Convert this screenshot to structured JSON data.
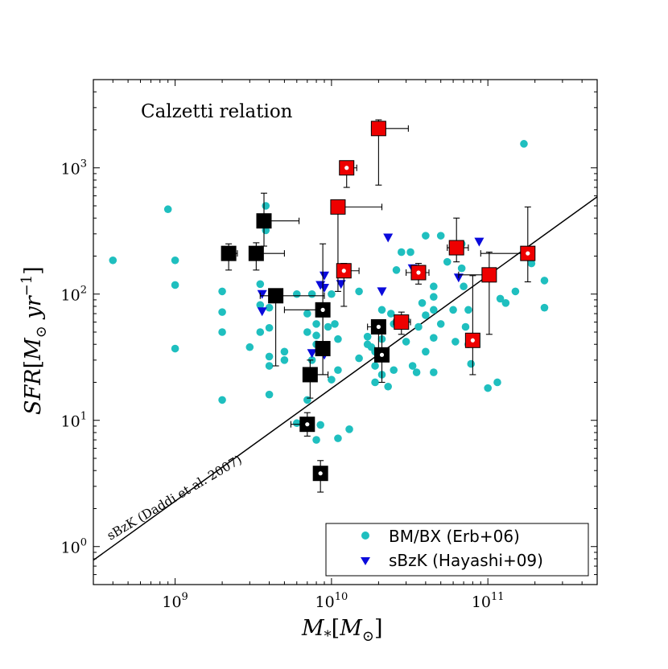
{
  "chart_data": {
    "type": "scatter",
    "title": "",
    "annotation": "Calzetti relation",
    "xlabel": {
      "main": "M",
      "sub": "*",
      "unit_open": "[",
      "unit_main": "M",
      "unit_sub": "⊙",
      "unit_close": "]"
    },
    "ylabel": {
      "main": "SFR",
      "unit_open": "[",
      "unit_main": "M",
      "unit_sub": "⊙",
      "unit_yr": " yr",
      "unit_sup": "−1",
      "unit_close": "]"
    },
    "x_scale": "log",
    "y_scale": "log",
    "xlim": [
      300000000.0,
      500000000000.0
    ],
    "ylim": [
      0.5,
      5000
    ],
    "x_ticks": [
      {
        "v": 1000000000.0,
        "base": "10",
        "exp": "9"
      },
      {
        "v": 10000000000.0,
        "base": "10",
        "exp": "10"
      },
      {
        "v": 100000000000.0,
        "base": "10",
        "exp": "11"
      }
    ],
    "y_ticks": [
      {
        "v": 1,
        "base": "10",
        "exp": "0"
      },
      {
        "v": 10,
        "base": "10",
        "exp": "1"
      },
      {
        "v": 100,
        "base": "10",
        "exp": "2"
      },
      {
        "v": 1000,
        "base": "10",
        "exp": "3"
      }
    ],
    "relation_line": {
      "label": "sBzK (Daddi et al. 2007)",
      "points": [
        [
          300000000.0,
          0.78
        ],
        [
          500000000000.0,
          590
        ]
      ]
    },
    "legend": {
      "placement": "lower-right",
      "entries": [
        {
          "label": "BM/BX (Erb+06)",
          "marker": "circle",
          "color": "#1fbfbf"
        },
        {
          "label": "sBzK (Hayashi+09)",
          "marker": "triangle-down",
          "color": "#0a0adc"
        }
      ]
    },
    "series": [
      {
        "name": "BM/BX (Erb+06)",
        "marker": "circle",
        "color": "#1fbfbf",
        "points": [
          [
            400000000.0,
            185
          ],
          [
            900000000.0,
            470
          ],
          [
            1000000000.0,
            185
          ],
          [
            1000000000.0,
            118
          ],
          [
            1000000000.0,
            37
          ],
          [
            2000000000.0,
            105
          ],
          [
            2000000000.0,
            72
          ],
          [
            2000000000.0,
            50
          ],
          [
            2000000000.0,
            14.5
          ],
          [
            3000000000.0,
            38
          ],
          [
            3500000000.0,
            120
          ],
          [
            3500000000.0,
            82
          ],
          [
            3500000000.0,
            50
          ],
          [
            3800000000.0,
            500
          ],
          [
            3800000000.0,
            320
          ],
          [
            4000000000.0,
            78
          ],
          [
            4000000000.0,
            54
          ],
          [
            4000000000.0,
            32
          ],
          [
            4000000000.0,
            27
          ],
          [
            4000000000.0,
            16
          ],
          [
            5000000000.0,
            35
          ],
          [
            5000000000.0,
            30
          ],
          [
            6000000000.0,
            100
          ],
          [
            6000000000.0,
            9.5
          ],
          [
            7000000000.0,
            70
          ],
          [
            7000000000.0,
            50
          ],
          [
            7000000000.0,
            14.5
          ],
          [
            7500000000.0,
            100
          ],
          [
            7500000000.0,
            30
          ],
          [
            8000000000.0,
            58
          ],
          [
            8000000000.0,
            47
          ],
          [
            8000000000.0,
            40
          ],
          [
            8000000000.0,
            7
          ],
          [
            8500000000.0,
            9.2
          ],
          [
            9000000000.0,
            35
          ],
          [
            9500000000.0,
            55
          ],
          [
            10000000000.0,
            100
          ],
          [
            10000000000.0,
            21
          ],
          [
            10500000000.0,
            58
          ],
          [
            11000000000.0,
            44
          ],
          [
            11000000000.0,
            25
          ],
          [
            11000000000.0,
            7.2
          ],
          [
            13000000000.0,
            8.5
          ],
          [
            15000000000.0,
            105
          ],
          [
            15000000000.0,
            31
          ],
          [
            17000000000.0,
            46
          ],
          [
            17000000000.0,
            40
          ],
          [
            18000000000.0,
            38
          ],
          [
            19000000000.0,
            35
          ],
          [
            19000000000.0,
            27
          ],
          [
            19000000000.0,
            20
          ],
          [
            21000000000.0,
            75
          ],
          [
            21000000000.0,
            44
          ],
          [
            21000000000.0,
            23
          ],
          [
            22000000000.0,
            31
          ],
          [
            23000000000.0,
            18.5
          ],
          [
            24000000000.0,
            70
          ],
          [
            25000000000.0,
            58
          ],
          [
            25000000000.0,
            25
          ],
          [
            26000000000.0,
            155
          ],
          [
            28000000000.0,
            215
          ],
          [
            30000000000.0,
            62
          ],
          [
            30000000000.0,
            42
          ],
          [
            32000000000.0,
            215
          ],
          [
            33000000000.0,
            27
          ],
          [
            35000000000.0,
            24
          ],
          [
            36000000000.0,
            55
          ],
          [
            38000000000.0,
            85
          ],
          [
            40000000000.0,
            290
          ],
          [
            40000000000.0,
            68
          ],
          [
            40000000000.0,
            35
          ],
          [
            45000000000.0,
            115
          ],
          [
            45000000000.0,
            95
          ],
          [
            45000000000.0,
            75
          ],
          [
            45000000000.0,
            45
          ],
          [
            45000000000.0,
            24
          ],
          [
            50000000000.0,
            290
          ],
          [
            50000000000.0,
            58
          ],
          [
            55000000000.0,
            180
          ],
          [
            60000000000.0,
            75
          ],
          [
            62000000000.0,
            42
          ],
          [
            68000000000.0,
            250
          ],
          [
            68000000000.0,
            160
          ],
          [
            70000000000.0,
            115
          ],
          [
            72000000000.0,
            55
          ],
          [
            75000000000.0,
            75
          ],
          [
            75000000000.0,
            40
          ],
          [
            78000000000.0,
            28
          ],
          [
            100000000000.0,
            18
          ],
          [
            115000000000.0,
            20
          ],
          [
            120000000000.0,
            92
          ],
          [
            130000000000.0,
            85
          ],
          [
            150000000000.0,
            105
          ],
          [
            170000000000.0,
            1550
          ],
          [
            190000000000.0,
            175
          ],
          [
            230000000000.0,
            128
          ],
          [
            230000000000.0,
            78
          ]
        ]
      },
      {
        "name": "sBzK (Hayashi+09)",
        "marker": "triangle-down",
        "color": "#0a0adc",
        "points": [
          [
            3600000000.0,
            100
          ],
          [
            3600000000.0,
            73
          ],
          [
            7500000000.0,
            34
          ],
          [
            8500000000.0,
            118
          ],
          [
            9000000000.0,
            140
          ],
          [
            9000000000.0,
            112
          ],
          [
            9000000000.0,
            33
          ],
          [
            11500000000.0,
            120
          ],
          [
            21000000000.0,
            105
          ],
          [
            23000000000.0,
            280
          ],
          [
            33000000000.0,
            160
          ],
          [
            65000000000.0,
            135
          ],
          [
            88000000000.0,
            260
          ]
        ]
      },
      {
        "name": "Black sample",
        "marker": "square",
        "color": "#000000",
        "points": [
          {
            "x": 2200000000.0,
            "y": 210,
            "xl": 2000000000.0,
            "xh": 2500000000.0,
            "yl": 155,
            "yh": 250,
            "open": false
          },
          {
            "x": 3300000000.0,
            "y": 210,
            "xl": 3100000000.0,
            "xh": 5000000000.0,
            "yl": 155,
            "yh": 255,
            "open": false
          },
          {
            "x": 3700000000.0,
            "y": 380,
            "xl": 3400000000.0,
            "xh": 6200000000.0,
            "yl": 240,
            "yh": 630,
            "open": false
          },
          {
            "x": 4400000000.0,
            "y": 97,
            "xl": 3500000000.0,
            "xh": 9000000000.0,
            "yl": 27,
            "yh": 110,
            "open": false
          },
          {
            "x": 8800000000.0,
            "y": 75,
            "xl": 5000000000.0,
            "xh": 9400000000.0,
            "yl": 38,
            "yh": 250,
            "open": true
          },
          {
            "x": 8800000000.0,
            "y": 37,
            "xl": 8500000000.0,
            "xh": 9500000000.0,
            "yl": 23,
            "yh": 70,
            "open": false
          },
          {
            "x": 7300000000.0,
            "y": 23,
            "xl": 6800000000.0,
            "xh": 9500000000.0,
            "yl": 15,
            "yh": 30,
            "open": false
          },
          {
            "x": 7000000000.0,
            "y": 9.3,
            "xl": 5500000000.0,
            "xh": 7600000000.0,
            "yl": 7.5,
            "yh": 11.5,
            "open": true
          },
          {
            "x": 8500000000.0,
            "y": 3.8,
            "xl": 8000000000.0,
            "xh": 9000000000.0,
            "yl": 2.7,
            "yh": 4.8,
            "open": true
          },
          {
            "x": 20000000000.0,
            "y": 55,
            "xl": 17000000000.0,
            "xh": 22000000000.0,
            "yl": 30,
            "yh": 60,
            "open": true
          },
          {
            "x": 21000000000.0,
            "y": 33,
            "xl": 19000000000.0,
            "xh": 23000000000.0,
            "yl": 20,
            "yh": 50,
            "open": true
          }
        ]
      },
      {
        "name": "Red sample",
        "marker": "square",
        "color": "#ee0000",
        "points": [
          {
            "x": 20000000000.0,
            "y": 2050,
            "xl": 18000000000.0,
            "xh": 31000000000.0,
            "yl": 730,
            "yh": 2400,
            "open": false
          },
          {
            "x": 12500000000.0,
            "y": 1000,
            "xl": 11500000000.0,
            "xh": 14500000000.0,
            "yl": 700,
            "yh": 1040,
            "open": true
          },
          {
            "x": 11000000000.0,
            "y": 490,
            "xl": 10500000000.0,
            "xh": 21000000000.0,
            "yl": 105,
            "yh": 510,
            "open": false
          },
          {
            "x": 12000000000.0,
            "y": 153,
            "xl": 11000000000.0,
            "xh": 15000000000.0,
            "yl": 80,
            "yh": 175,
            "open": true
          },
          {
            "x": 28000000000.0,
            "y": 60,
            "xl": 25000000000.0,
            "xh": 32000000000.0,
            "yl": 48,
            "yh": 72,
            "open": false
          },
          {
            "x": 36000000000.0,
            "y": 148,
            "xl": 30000000000.0,
            "xh": 42000000000.0,
            "yl": 120,
            "yh": 175,
            "open": true
          },
          {
            "x": 63000000000.0,
            "y": 233,
            "xl": 55000000000.0,
            "xh": 75000000000.0,
            "yl": 180,
            "yh": 400,
            "open": false
          },
          {
            "x": 80000000000.0,
            "y": 43,
            "xl": 76000000000.0,
            "xh": 88000000000.0,
            "yl": 23,
            "yh": 140,
            "open": true
          },
          {
            "x": 102000000000.0,
            "y": 142,
            "xl": 65000000000.0,
            "xh": 110000000000.0,
            "yl": 48,
            "yh": 215,
            "open": false
          },
          {
            "x": 180000000000.0,
            "y": 210,
            "xl": 90000000000.0,
            "xh": 190000000000.0,
            "yl": 125,
            "yh": 490,
            "open": true
          }
        ]
      }
    ]
  }
}
